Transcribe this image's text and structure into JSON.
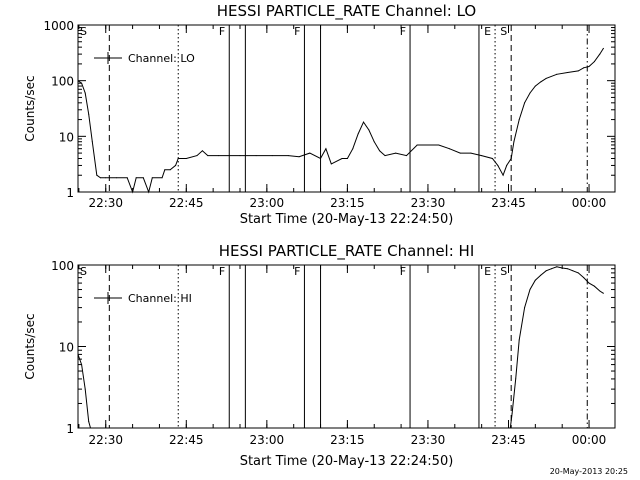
{
  "chart_data": [
    {
      "type": "line",
      "title": "HESSI PARTICLE_RATE Channel: LO",
      "xlabel": "Start Time (20-May-13 22:24:50)",
      "ylabel": "Counts/sec",
      "yscale": "log",
      "ylim": [
        1,
        1000
      ],
      "xlim": [
        "22:24:50",
        "00:04:50"
      ],
      "x_ticks": [
        "22:30",
        "22:45",
        "23:00",
        "23:15",
        "23:30",
        "23:45",
        "00:00"
      ],
      "y_ticks": [
        "1",
        "10",
        "100",
        "1000"
      ],
      "legend": {
        "label": "Channel: LO",
        "position": "top-left"
      },
      "markers": [
        {
          "label": "S",
          "time": "22:24:50",
          "style": "none"
        },
        {
          "label": "",
          "time": "22:30:40",
          "style": "dashed"
        },
        {
          "label": "",
          "time": "22:43:30",
          "style": "dotted"
        },
        {
          "label": "F",
          "time": "22:53:00",
          "style": "solid"
        },
        {
          "label": "",
          "time": "22:56:00",
          "style": "solid"
        },
        {
          "label": "F",
          "time": "23:07:00",
          "style": "solid"
        },
        {
          "label": "",
          "time": "23:10:00",
          "style": "solid"
        },
        {
          "label": "F",
          "time": "23:26:40",
          "style": "solid"
        },
        {
          "label": "",
          "time": "23:39:30",
          "style": "solid"
        },
        {
          "label": "E",
          "time": "23:42:30",
          "style": "dotted"
        },
        {
          "label": "S",
          "time": "23:45:30",
          "style": "dashed"
        },
        {
          "label": "",
          "time": "23:59:40",
          "style": "dashdot"
        }
      ],
      "series": [
        {
          "name": "Channel: LO",
          "points": [
            [
              "22:24:50",
              100
            ],
            [
              "22:25:30",
              90
            ],
            [
              "22:26:10",
              60
            ],
            [
              "22:26:50",
              25
            ],
            [
              "22:27:30",
              8
            ],
            [
              "22:28:20",
              2
            ],
            [
              "22:29:00",
              1.8
            ],
            [
              "22:30:00",
              1.8
            ],
            [
              "22:32:00",
              1.8
            ],
            [
              "22:34:00",
              1.8
            ],
            [
              "22:35:00",
              1
            ],
            [
              "22:35:40",
              1.8
            ],
            [
              "22:37:00",
              1.8
            ],
            [
              "22:38:00",
              1
            ],
            [
              "22:38:40",
              1.8
            ],
            [
              "22:40:30",
              1.8
            ],
            [
              "22:41:00",
              2.5
            ],
            [
              "22:42:00",
              2.5
            ],
            [
              "22:43:00",
              3
            ],
            [
              "22:43:30",
              4
            ],
            [
              "22:45:00",
              4
            ],
            [
              "22:47:00",
              4.5
            ],
            [
              "22:48:00",
              5.5
            ],
            [
              "22:49:00",
              4.5
            ],
            [
              "22:51:00",
              4.5
            ],
            [
              "22:53:00",
              4.5
            ],
            [
              "22:55:00",
              4.5
            ],
            [
              "22:58:00",
              4.5
            ],
            [
              "23:01:00",
              4.5
            ],
            [
              "23:04:00",
              4.5
            ],
            [
              "23:06:00",
              4.3
            ],
            [
              "23:08:00",
              5
            ],
            [
              "23:10:00",
              4
            ],
            [
              "23:11:00",
              6
            ],
            [
              "23:12:00",
              3.2
            ],
            [
              "23:14:00",
              4
            ],
            [
              "23:15:00",
              4
            ],
            [
              "23:16:00",
              6
            ],
            [
              "23:17:00",
              11
            ],
            [
              "23:18:00",
              18
            ],
            [
              "23:19:00",
              13
            ],
            [
              "23:20:00",
              8
            ],
            [
              "23:21:00",
              5.5
            ],
            [
              "23:22:00",
              4.5
            ],
            [
              "23:24:00",
              5
            ],
            [
              "23:26:00",
              4.5
            ],
            [
              "23:28:00",
              7
            ],
            [
              "23:30:00",
              7
            ],
            [
              "23:32:00",
              7
            ],
            [
              "23:34:00",
              6
            ],
            [
              "23:36:00",
              5
            ],
            [
              "23:38:00",
              5
            ],
            [
              "23:40:00",
              4.5
            ],
            [
              "23:42:00",
              4
            ],
            [
              "23:43:00",
              3
            ],
            [
              "23:44:00",
              2
            ],
            [
              "23:44:40",
              3
            ],
            [
              "23:45:30",
              4
            ],
            [
              "23:46:00",
              8
            ],
            [
              "23:47:00",
              20
            ],
            [
              "23:48:00",
              40
            ],
            [
              "23:49:00",
              60
            ],
            [
              "23:50:00",
              80
            ],
            [
              "23:51:00",
              95
            ],
            [
              "23:52:00",
              110
            ],
            [
              "23:54:00",
              130
            ],
            [
              "23:56:00",
              140
            ],
            [
              "23:58:00",
              150
            ],
            [
              "23:59:00",
              170
            ],
            [
              "00:00:00",
              180
            ],
            [
              "00:01:00",
              220
            ],
            [
              "00:02:00",
              300
            ],
            [
              "00:02:40",
              380
            ]
          ]
        }
      ]
    },
    {
      "type": "line",
      "title": "HESSI PARTICLE_RATE Channel: HI",
      "xlabel": "Start Time (20-May-13 22:24:50)",
      "ylabel": "Counts/sec",
      "yscale": "log",
      "ylim": [
        1,
        100
      ],
      "xlim": [
        "22:24:50",
        "00:04:50"
      ],
      "x_ticks": [
        "22:30",
        "22:45",
        "23:00",
        "23:15",
        "23:30",
        "23:45",
        "00:00"
      ],
      "y_ticks": [
        "1",
        "10",
        "100"
      ],
      "legend": {
        "label": "Channel: HI",
        "position": "top-left"
      },
      "markers": [
        {
          "label": "S",
          "time": "22:24:50",
          "style": "none"
        },
        {
          "label": "",
          "time": "22:30:40",
          "style": "dashed"
        },
        {
          "label": "",
          "time": "22:43:30",
          "style": "dotted"
        },
        {
          "label": "F",
          "time": "22:53:00",
          "style": "solid"
        },
        {
          "label": "",
          "time": "22:56:00",
          "style": "solid"
        },
        {
          "label": "F",
          "time": "23:07:00",
          "style": "solid"
        },
        {
          "label": "",
          "time": "23:10:00",
          "style": "solid"
        },
        {
          "label": "F",
          "time": "23:26:40",
          "style": "solid"
        },
        {
          "label": "",
          "time": "23:39:30",
          "style": "solid"
        },
        {
          "label": "E",
          "time": "23:42:30",
          "style": "dotted"
        },
        {
          "label": "S",
          "time": "23:45:30",
          "style": "dashed"
        },
        {
          "label": "",
          "time": "23:59:40",
          "style": "dashdot"
        }
      ],
      "series": [
        {
          "name": "Channel: HI",
          "points": [
            [
              "22:24:50",
              8
            ],
            [
              "22:25:30",
              6
            ],
            [
              "22:26:10",
              3
            ],
            [
              "22:26:50",
              1.2
            ],
            [
              "22:27:10",
              1
            ],
            [
              "23:45:20",
              1
            ],
            [
              "23:45:40",
              1.5
            ],
            [
              "23:46:20",
              4
            ],
            [
              "23:47:00",
              12
            ],
            [
              "23:48:00",
              30
            ],
            [
              "23:49:00",
              50
            ],
            [
              "23:50:00",
              65
            ],
            [
              "23:51:00",
              75
            ],
            [
              "23:52:00",
              85
            ],
            [
              "23:53:00",
              90
            ],
            [
              "23:54:00",
              95
            ],
            [
              "23:55:00",
              92
            ],
            [
              "23:56:00",
              90
            ],
            [
              "23:57:00",
              85
            ],
            [
              "23:58:00",
              80
            ],
            [
              "23:59:00",
              70
            ],
            [
              "00:00:00",
              60
            ],
            [
              "00:01:00",
              55
            ],
            [
              "00:02:00",
              48
            ],
            [
              "00:02:40",
              45
            ]
          ]
        }
      ]
    }
  ],
  "footer_timestamp": "20-May-2013 20:25"
}
